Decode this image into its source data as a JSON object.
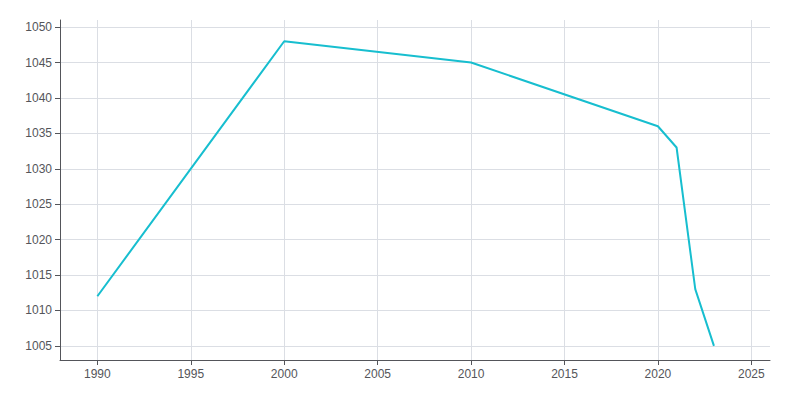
{
  "chart_data": {
    "type": "line",
    "x": [
      1990,
      2000,
      2010,
      2020,
      2021,
      2022,
      2023
    ],
    "values": [
      1012,
      1048,
      1045,
      1036,
      1033,
      1013,
      1005
    ],
    "color": "#17becf",
    "xlim": [
      1988,
      2026
    ],
    "ylim": [
      1003,
      1051
    ],
    "xticks": [
      1990,
      1995,
      2000,
      2005,
      2010,
      2015,
      2020,
      2025
    ],
    "yticks": [
      1005,
      1010,
      1015,
      1020,
      1025,
      1030,
      1035,
      1040,
      1045,
      1050
    ],
    "grid": true
  }
}
